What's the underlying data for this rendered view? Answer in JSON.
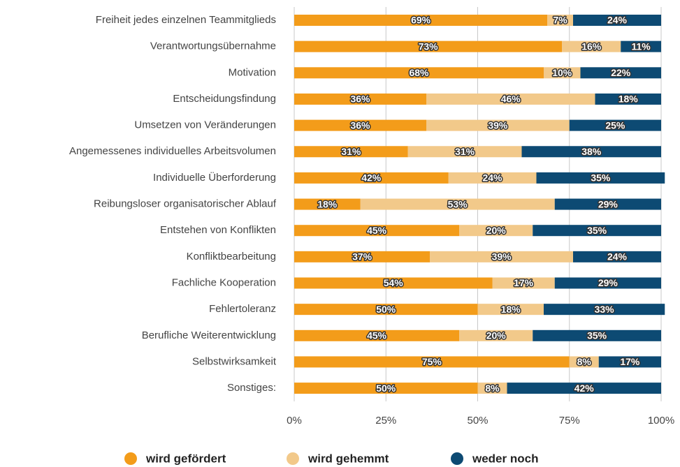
{
  "chart_data": {
    "type": "stacked_barh",
    "categories": [
      "Freiheit jedes einzelnen Teammitglieds",
      "Verantwortungsübernahme",
      "Motivation",
      "Entscheidungsfindung",
      "Umsetzen von Veränderungen",
      "Angemessenes individuelles Arbeitsvolumen",
      "Individuelle Überforderung",
      "Reibungsloser organisatorischer Ablauf",
      "Entstehen von Konflikten",
      "Konfliktbearbeitung",
      "Fachliche Kooperation",
      "Fehlertoleranz",
      "Berufliche Weiterentwicklung",
      "Selbstwirksamkeit",
      "Sonstiges:"
    ],
    "series": [
      {
        "name": "wird gefördert",
        "color": "#f39c1a",
        "values": [
          69,
          73,
          68,
          36,
          36,
          31,
          42,
          18,
          45,
          37,
          54,
          50,
          45,
          75,
          50
        ],
        "value_labels": [
          "69%",
          "73%",
          "68%",
          "36%",
          "36%",
          "31%",
          "42%",
          "18%",
          "45%",
          "37%",
          "54%",
          "50%",
          "45%",
          "75%",
          "50%"
        ]
      },
      {
        "name": "wird gehemmt",
        "color": "#f2c98a",
        "values": [
          7,
          16,
          10,
          46,
          39,
          31,
          24,
          53,
          20,
          39,
          17,
          18,
          20,
          8,
          8
        ],
        "value_labels": [
          "7%",
          "16%",
          "10%",
          "46%",
          "39%",
          "31%",
          "24%",
          "53%",
          "20%",
          "39%",
          "17%",
          "18%",
          "20%",
          "8%",
          "8%"
        ]
      },
      {
        "name": "weder noch",
        "color": "#0d4a73",
        "values": [
          24,
          11,
          22,
          18,
          25,
          38,
          35,
          29,
          35,
          24,
          29,
          33,
          35,
          17,
          42
        ],
        "value_labels": [
          "24%",
          "11%",
          "22%",
          "18%",
          "25%",
          "38%",
          "35%",
          "29%",
          "35%",
          "24%",
          "29%",
          "33%",
          "35%",
          "17%",
          "42%"
        ]
      }
    ],
    "xlim": [
      0,
      100
    ],
    "xticks": [
      {
        "value": 0,
        "label": "0%"
      },
      {
        "value": 25,
        "label": "25%"
      },
      {
        "value": 50,
        "label": "50%"
      },
      {
        "value": 75,
        "label": "75%"
      },
      {
        "value": 100,
        "label": "100%"
      }
    ],
    "grid": true,
    "legend": "bottom"
  }
}
